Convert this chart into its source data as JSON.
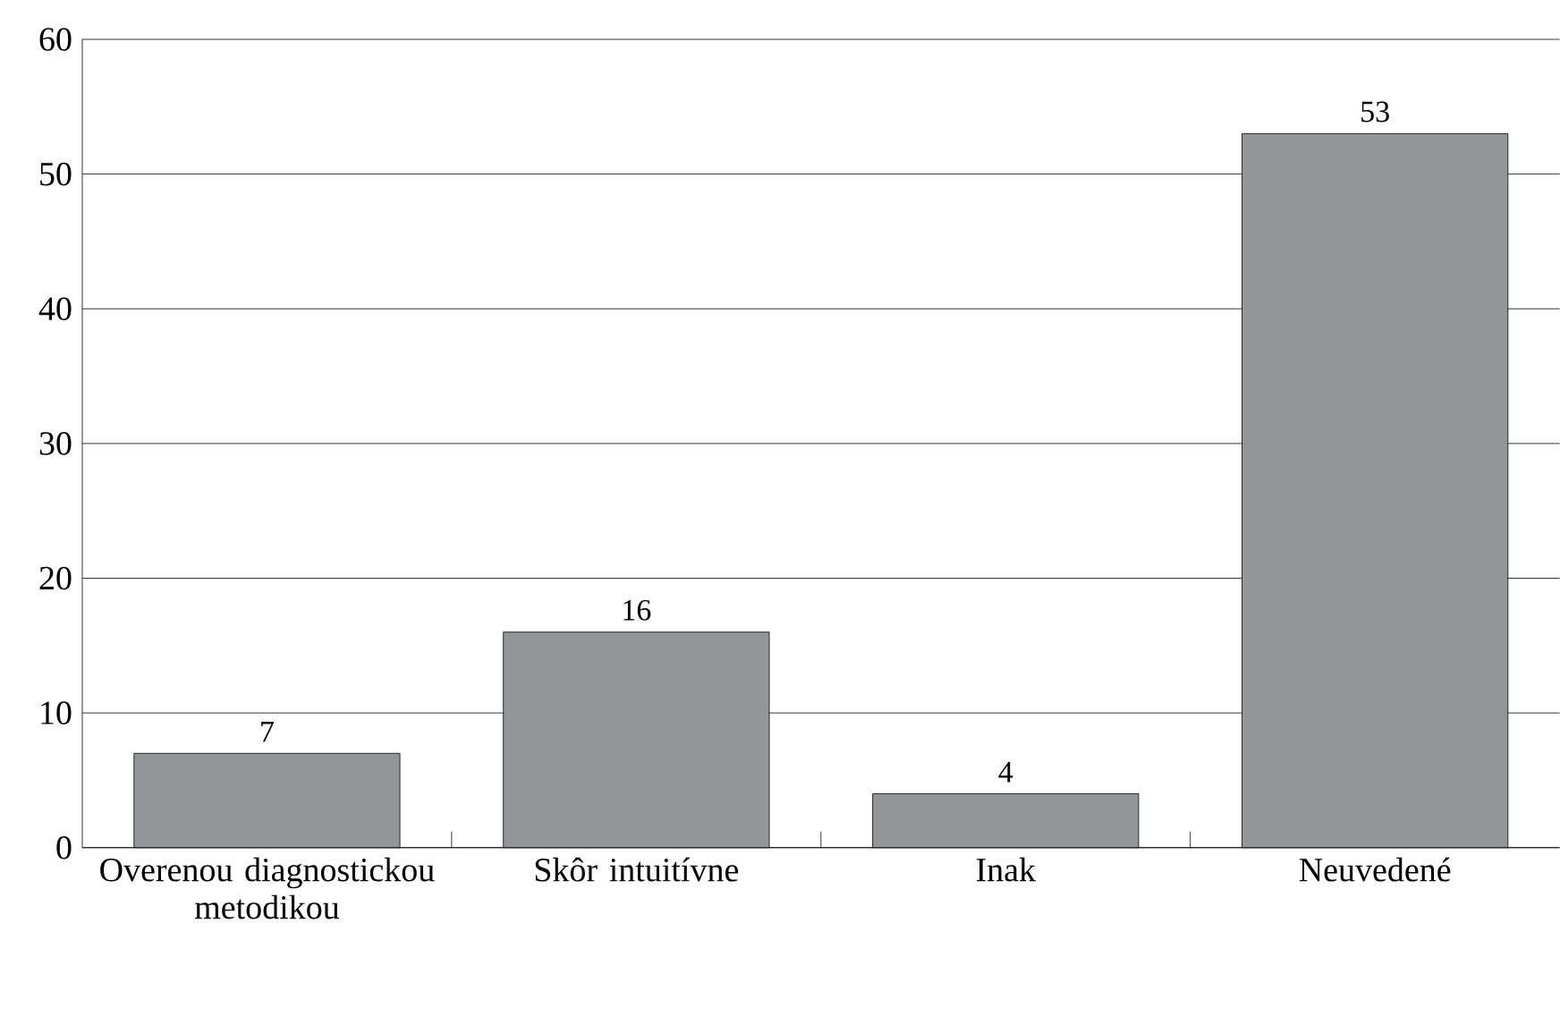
{
  "chart_data": {
    "type": "bar",
    "categories": [
      "Overenou diagnostickou metodikou",
      "Skôr intuitívne",
      "Inak",
      "Neuvedené"
    ],
    "values": [
      7,
      16,
      4,
      53
    ],
    "color": "#939598",
    "ylim": [
      0,
      60
    ],
    "yticks": [
      0,
      10,
      20,
      30,
      40,
      50,
      60
    ],
    "grid": "y",
    "data_labels": true
  }
}
